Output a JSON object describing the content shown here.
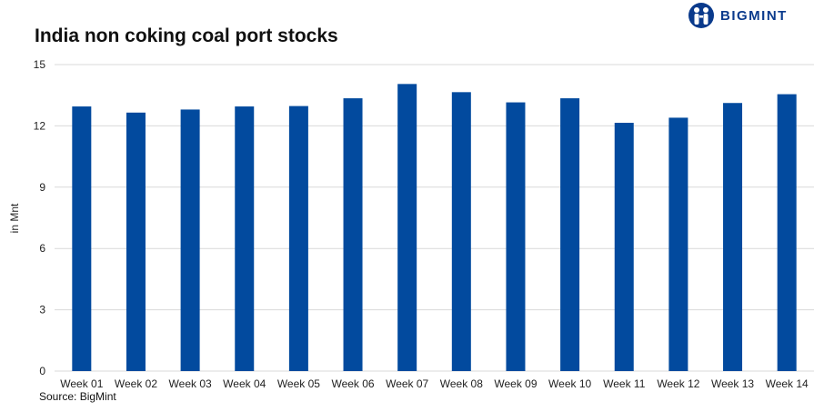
{
  "logo": {
    "text": "BIGMINT",
    "icon": "bigmint-people-icon",
    "color": "#0a3a8c"
  },
  "source": "Source: BigMint",
  "colors": {
    "bar": "#024a9e",
    "grid": "#d9d9d9"
  },
  "chart_data": {
    "type": "bar",
    "title": "India non coking coal port stocks",
    "xlabel": "",
    "ylabel": "in Mnt",
    "ylim": [
      0,
      15
    ],
    "yticks": [
      0,
      3,
      6,
      9,
      12,
      15
    ],
    "grid": true,
    "legend": "none",
    "categories": [
      "Week 01",
      "Week 02",
      "Week 03",
      "Week 04",
      "Week 05",
      "Week 06",
      "Week 07",
      "Week 08",
      "Week 09",
      "Week 10",
      "Week 11",
      "Week 12",
      "Week 13",
      "Week 14"
    ],
    "values": [
      12.95,
      12.65,
      12.8,
      12.95,
      12.97,
      13.35,
      14.05,
      13.65,
      13.15,
      13.35,
      12.15,
      12.4,
      13.12,
      13.55
    ]
  }
}
